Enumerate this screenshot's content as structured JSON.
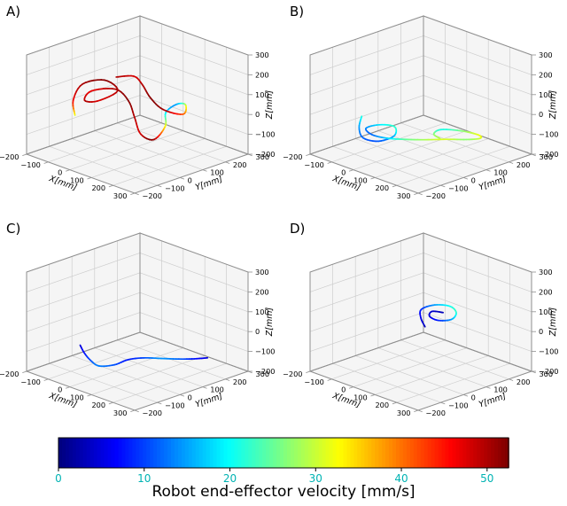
{
  "figure": {
    "background": "#ffffff",
    "panels": [
      {
        "id": "A",
        "label": "A)"
      },
      {
        "id": "B",
        "label": "B)"
      },
      {
        "id": "C",
        "label": "C)"
      },
      {
        "id": "D",
        "label": "D)"
      }
    ]
  },
  "style": {
    "pane_color": "#f5f5f5",
    "grid_color": "#cdcdcd",
    "edge_color": "#8f8f8f",
    "tick_label_color": "#000000"
  },
  "chart_data": [
    {
      "type": "line3d",
      "panel": "A",
      "xlabel": "X[mm]",
      "ylabel": "Y[mm]",
      "zlabel": "Z[mm]",
      "xlim": [
        -200,
        300
      ],
      "ylim": [
        -200,
        300
      ],
      "zlim": [
        -200,
        300
      ],
      "xticks": [
        -200,
        -100,
        0,
        100,
        200,
        300
      ],
      "yticks": [
        -200,
        -100,
        0,
        100,
        200,
        300
      ],
      "zticks": [
        -200,
        -100,
        0,
        100,
        200,
        300
      ],
      "colormap": "jet",
      "color_by": "velocity_mm_s",
      "points": [
        [
          -60,
          -120,
          20,
          30
        ],
        [
          -110,
          -80,
          60,
          45
        ],
        [
          -130,
          -20,
          110,
          50
        ],
        [
          -80,
          30,
          130,
          52
        ],
        [
          -20,
          30,
          100,
          50
        ],
        [
          -50,
          -30,
          60,
          48
        ],
        [
          -110,
          -30,
          40,
          50
        ],
        [
          -130,
          20,
          60,
          47
        ],
        [
          -60,
          60,
          80,
          50
        ],
        [
          20,
          40,
          60,
          52
        ],
        [
          90,
          0,
          20,
          50
        ],
        [
          160,
          -40,
          -20,
          48
        ],
        [
          200,
          -20,
          -40,
          52
        ],
        [
          190,
          40,
          0,
          35
        ],
        [
          140,
          90,
          30,
          20
        ],
        [
          150,
          130,
          60,
          15
        ],
        [
          200,
          120,
          80,
          28
        ],
        [
          230,
          80,
          60,
          40
        ],
        [
          180,
          40,
          80,
          50
        ],
        [
          100,
          60,
          100,
          52
        ],
        [
          20,
          100,
          120,
          50
        ],
        [
          -40,
          120,
          130,
          48
        ],
        [
          -100,
          100,
          110,
          50
        ]
      ]
    },
    {
      "type": "line3d",
      "panel": "B",
      "xlabel": "X[mm]",
      "ylabel": "Y[mm]",
      "zlabel": "Z[mm]",
      "xlim": [
        -200,
        300
      ],
      "ylim": [
        -200,
        300
      ],
      "zlim": [
        -200,
        300
      ],
      "xticks": [
        -200,
        -100,
        0,
        100,
        200,
        300
      ],
      "yticks": [
        -200,
        -100,
        0,
        100,
        200,
        300
      ],
      "zticks": [
        -200,
        -100,
        0,
        100,
        200,
        300
      ],
      "colormap": "jet",
      "color_by": "velocity_mm_s",
      "points": [
        [
          -150,
          -20,
          -60,
          22
        ],
        [
          -120,
          -60,
          -90,
          15
        ],
        [
          -70,
          -90,
          -110,
          12
        ],
        [
          -20,
          -70,
          -115,
          11
        ],
        [
          0,
          -20,
          -100,
          15
        ],
        [
          -40,
          20,
          -85,
          22
        ],
        [
          -100,
          10,
          -95,
          19
        ],
        [
          -120,
          -30,
          -105,
          14
        ],
        [
          -70,
          -50,
          -110,
          12
        ],
        [
          0,
          -50,
          -100,
          17
        ],
        [
          60,
          -30,
          -90,
          24
        ],
        [
          120,
          0,
          -80,
          28
        ],
        [
          180,
          40,
          -70,
          31
        ],
        [
          220,
          90,
          -75,
          27
        ],
        [
          230,
          140,
          -85,
          30
        ],
        [
          190,
          170,
          -95,
          32
        ],
        [
          130,
          150,
          -90,
          27
        ],
        [
          90,
          100,
          -80,
          21
        ],
        [
          110,
          50,
          -75,
          26
        ],
        [
          160,
          30,
          -70,
          29
        ]
      ]
    },
    {
      "type": "line3d",
      "panel": "C",
      "xlabel": "X[mm]",
      "ylabel": "Y[mm]",
      "zlabel": "Z[mm]",
      "xlim": [
        -200,
        300
      ],
      "ylim": [
        -200,
        300
      ],
      "zlim": [
        -200,
        300
      ],
      "xticks": [
        -200,
        -100,
        0,
        100,
        200,
        300
      ],
      "yticks": [
        -200,
        -100,
        0,
        100,
        200,
        300
      ],
      "zticks": [
        -200,
        -100,
        0,
        100,
        200,
        300
      ],
      "colormap": "jet",
      "color_by": "velocity_mm_s",
      "points": [
        [
          -120,
          -40,
          -100,
          4
        ],
        [
          -80,
          -60,
          -115,
          7
        ],
        [
          -30,
          -80,
          -125,
          10
        ],
        [
          20,
          -90,
          -130,
          13
        ],
        [
          60,
          -60,
          -120,
          11
        ],
        [
          70,
          -10,
          -110,
          8
        ],
        [
          100,
          30,
          -105,
          10
        ],
        [
          150,
          60,
          -100,
          14
        ],
        [
          200,
          90,
          -95,
          12
        ],
        [
          240,
          120,
          -90,
          8
        ],
        [
          270,
          150,
          -85,
          5
        ]
      ]
    },
    {
      "type": "line3d",
      "panel": "D",
      "xlabel": "X[mm]",
      "ylabel": "Y[mm]",
      "zlabel": "Z[mm]",
      "xlim": [
        -200,
        300
      ],
      "ylim": [
        -200,
        300
      ],
      "zlim": [
        -200,
        300
      ],
      "xticks": [
        -200,
        -100,
        0,
        100,
        200,
        300
      ],
      "yticks": [
        -200,
        -100,
        0,
        100,
        200,
        300
      ],
      "zticks": [
        -200,
        -100,
        0,
        100,
        200,
        300
      ],
      "colormap": "jet",
      "color_by": "velocity_mm_s",
      "points": [
        [
          80,
          40,
          40,
          3
        ],
        [
          40,
          60,
          60,
          5
        ],
        [
          10,
          90,
          80,
          8
        ],
        [
          30,
          130,
          95,
          14
        ],
        [
          80,
          150,
          100,
          20
        ],
        [
          130,
          130,
          95,
          22
        ],
        [
          150,
          90,
          85,
          16
        ],
        [
          120,
          60,
          80,
          9
        ],
        [
          80,
          60,
          85,
          5
        ],
        [
          60,
          90,
          90,
          4
        ],
        [
          90,
          110,
          88,
          3
        ]
      ]
    },
    {
      "type": "colorbar",
      "orientation": "horizontal",
      "colormap": "jet",
      "vmin": 0,
      "vmax": 52.5,
      "ticks": [
        0,
        10,
        20,
        30,
        40,
        50
      ],
      "tick_color": "#00b3b3",
      "label": "Robot end-effector velocity  [mm/s]"
    }
  ]
}
